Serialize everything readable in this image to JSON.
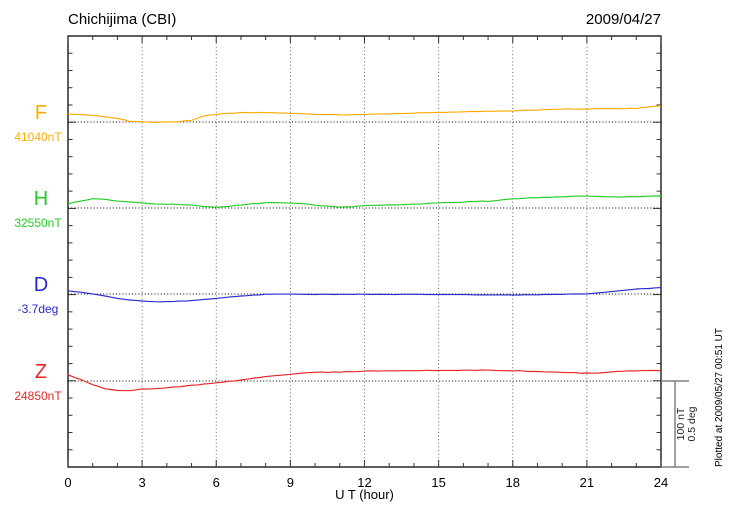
{
  "header": {
    "title": "Chichijima (CBI)",
    "date": "2009/04/27"
  },
  "chart_data": {
    "type": "line",
    "title": "Chichijima (CBI)",
    "date": "2009/04/27",
    "xlabel": "U T (hour)",
    "x_range": [
      0,
      24
    ],
    "x_ticks": [
      0,
      3,
      6,
      9,
      12,
      15,
      18,
      21,
      24
    ],
    "x_minor_step_hours": 1,
    "grid": "dotted vertical lines every 3 hours; dotted horizontal baseline per component",
    "legend_position": "left-of-axis component labels",
    "plotted_at": "Plotted at 2009/05/27 00:51 UT",
    "scale_bar": {
      "labels": [
        "100 nT",
        "0.5 deg"
      ],
      "nT_per_bar": 100,
      "deg_per_bar": 0.5
    },
    "series": [
      {
        "id": "F",
        "label": "F",
        "baseline_label": "41040nT",
        "baseline_value": 41040,
        "unit": "nT",
        "color": "#ffaa00",
        "points": [
          [
            0,
            9
          ],
          [
            0.5,
            8.5
          ],
          [
            1,
            8
          ],
          [
            1.5,
            6
          ],
          [
            2,
            4
          ],
          [
            2.5,
            1
          ],
          [
            3,
            0
          ],
          [
            3.5,
            -0.5
          ],
          [
            4,
            0
          ],
          [
            4.5,
            0.5
          ],
          [
            5,
            2
          ],
          [
            5.5,
            7
          ],
          [
            6,
            9
          ],
          [
            6.5,
            10
          ],
          [
            7,
            11
          ],
          [
            8,
            11
          ],
          [
            9,
            10
          ],
          [
            10,
            9
          ],
          [
            11,
            8.5
          ],
          [
            12,
            9
          ],
          [
            13,
            9.5
          ],
          [
            14,
            10.5
          ],
          [
            15,
            11
          ],
          [
            16,
            12
          ],
          [
            17,
            12.5
          ],
          [
            18,
            13
          ],
          [
            19,
            14
          ],
          [
            20,
            15
          ],
          [
            21,
            15
          ],
          [
            22,
            15.5
          ],
          [
            23,
            16
          ],
          [
            24,
            19
          ]
        ]
      },
      {
        "id": "H",
        "label": "H",
        "baseline_label": "32550nT",
        "baseline_value": 32550,
        "unit": "nT",
        "color": "#22cc22",
        "points": [
          [
            0,
            5
          ],
          [
            0.5,
            8
          ],
          [
            1,
            10.5
          ],
          [
            1.5,
            10
          ],
          [
            2,
            8
          ],
          [
            2.5,
            7
          ],
          [
            3,
            6
          ],
          [
            3.5,
            5
          ],
          [
            4,
            4.5
          ],
          [
            4.5,
            4
          ],
          [
            5,
            3.5
          ],
          [
            5.5,
            2
          ],
          [
            6,
            1
          ],
          [
            6.5,
            2
          ],
          [
            7,
            3.5
          ],
          [
            7.5,
            5
          ],
          [
            8,
            6
          ],
          [
            8.5,
            6
          ],
          [
            9,
            6
          ],
          [
            9.5,
            5
          ],
          [
            10,
            3.5
          ],
          [
            10.5,
            2
          ],
          [
            11,
            1
          ],
          [
            11.5,
            1.5
          ],
          [
            12,
            2.5
          ],
          [
            13,
            3.5
          ],
          [
            14,
            4.5
          ],
          [
            15,
            6
          ],
          [
            16,
            7
          ],
          [
            17,
            8
          ],
          [
            18,
            10.5
          ],
          [
            19,
            12
          ],
          [
            20,
            13
          ],
          [
            21,
            14
          ],
          [
            22,
            13
          ],
          [
            23,
            13
          ],
          [
            24,
            14
          ]
        ]
      },
      {
        "id": "D",
        "label": "D",
        "baseline_label": "-3.7deg",
        "baseline_value": -3.7,
        "unit": "deg",
        "color": "#2929cc",
        "points": [
          [
            0,
            0.018
          ],
          [
            0.5,
            0.01
          ],
          [
            1,
            0
          ],
          [
            1.5,
            -0.012
          ],
          [
            2,
            -0.025
          ],
          [
            2.5,
            -0.034
          ],
          [
            3,
            -0.041
          ],
          [
            3.5,
            -0.044
          ],
          [
            4,
            -0.045
          ],
          [
            4.5,
            -0.042
          ],
          [
            5,
            -0.039
          ],
          [
            5.5,
            -0.032
          ],
          [
            6,
            -0.025
          ],
          [
            6.5,
            -0.018
          ],
          [
            7,
            -0.012
          ],
          [
            7.5,
            -0.007
          ],
          [
            8,
            -0.002
          ],
          [
            9,
            -0.001
          ],
          [
            10,
            -0.002
          ],
          [
            11,
            -0.002
          ],
          [
            12,
            -0.002
          ],
          [
            13,
            -0.003
          ],
          [
            14,
            -0.002
          ],
          [
            15,
            -0.003
          ],
          [
            16,
            -0.004
          ],
          [
            17,
            -0.006
          ],
          [
            18,
            -0.006
          ],
          [
            19,
            -0.004
          ],
          [
            20,
            -0.002
          ],
          [
            21,
            0
          ],
          [
            22,
            0.014
          ],
          [
            23,
            0.029
          ],
          [
            24,
            0.037
          ]
        ]
      },
      {
        "id": "Z",
        "label": "Z",
        "baseline_label": "24850nT",
        "baseline_value": 24850,
        "unit": "nT",
        "color": "#e62626",
        "points": [
          [
            0,
            7
          ],
          [
            0.5,
            2
          ],
          [
            1,
            -4
          ],
          [
            1.5,
            -9
          ],
          [
            2,
            -11
          ],
          [
            2.5,
            -11
          ],
          [
            3,
            -9.5
          ],
          [
            3.5,
            -9
          ],
          [
            4,
            -8
          ],
          [
            4.5,
            -6.5
          ],
          [
            5,
            -5
          ],
          [
            5.5,
            -3.5
          ],
          [
            6,
            -2
          ],
          [
            6.5,
            -0.5
          ],
          [
            7,
            1
          ],
          [
            7.5,
            3
          ],
          [
            8,
            5
          ],
          [
            8.5,
            6.5
          ],
          [
            9,
            8
          ],
          [
            9.5,
            9
          ],
          [
            10,
            10
          ],
          [
            11,
            10.5
          ],
          [
            12,
            11.5
          ],
          [
            13,
            12
          ],
          [
            14,
            12
          ],
          [
            15,
            12.5
          ],
          [
            16,
            12.5
          ],
          [
            17,
            12.5
          ],
          [
            18,
            12
          ],
          [
            19,
            11
          ],
          [
            20,
            10
          ],
          [
            21,
            9
          ],
          [
            21.5,
            9
          ],
          [
            22,
            10.5
          ],
          [
            23,
            12
          ],
          [
            24,
            12
          ]
        ]
      }
    ]
  }
}
